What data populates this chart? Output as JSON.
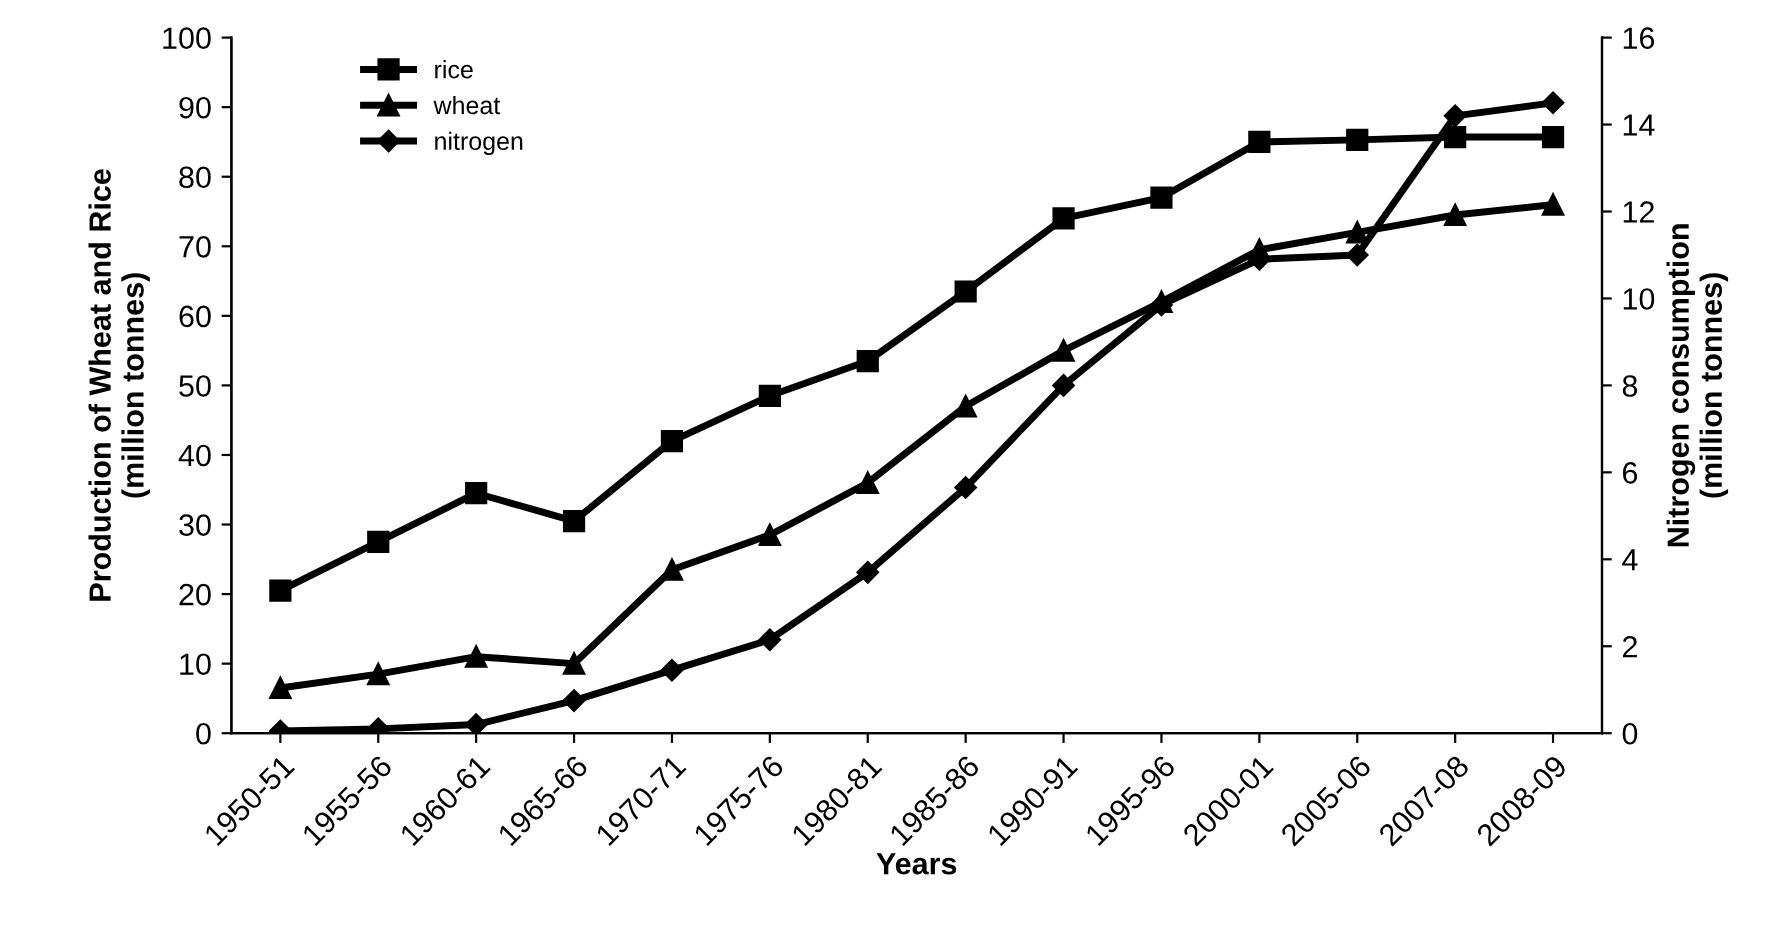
{
  "chart_data": {
    "type": "line",
    "xlabel": "Years",
    "ylabel": "Production of Wheat and Rice\n(million tonnes)",
    "y2label": "Nitrogen consumption\n(million tonnes)",
    "categories": [
      "1950-51",
      "1955-56",
      "1960-61",
      "1965-66",
      "1970-71",
      "1975-76",
      "1980-81",
      "1985-86",
      "1990-91",
      "1995-96",
      "2000-01",
      "2005-06",
      "2007-08",
      "2008-09"
    ],
    "series": [
      {
        "name": "rice",
        "color": "#000000",
        "marker": "square",
        "values": [
          20.5,
          27.5,
          34.5,
          30.5,
          42,
          48.5,
          53.5,
          63.5,
          74,
          77,
          85,
          85.3,
          85.7,
          85.7
        ]
      },
      {
        "name": "wheat",
        "color": "#000000",
        "marker": "triangle",
        "values": [
          6.5,
          8.5,
          11,
          10,
          23.5,
          28.5,
          36,
          47,
          55,
          62,
          69.5,
          72,
          74.5,
          76
        ]
      },
      {
        "name": "nitrogen",
        "color": "#000000",
        "marker": "diamond",
        "axis": "y2",
        "values": [
          0.05,
          0.1,
          0.2,
          0.75,
          1.45,
          2.15,
          3.7,
          5.65,
          8.0,
          9.85,
          10.9,
          11.0,
          14.2,
          14.5
        ]
      }
    ],
    "ylim": [
      0,
      100
    ],
    "yticks": [
      0,
      10,
      20,
      30,
      40,
      50,
      60,
      70,
      80,
      90,
      100
    ],
    "y2lim": [
      0,
      16
    ],
    "y2ticks": [
      0,
      2,
      4,
      6,
      8,
      10,
      12,
      14,
      16
    ],
    "grid": false,
    "legend": "top left",
    "line_style": "solid"
  }
}
